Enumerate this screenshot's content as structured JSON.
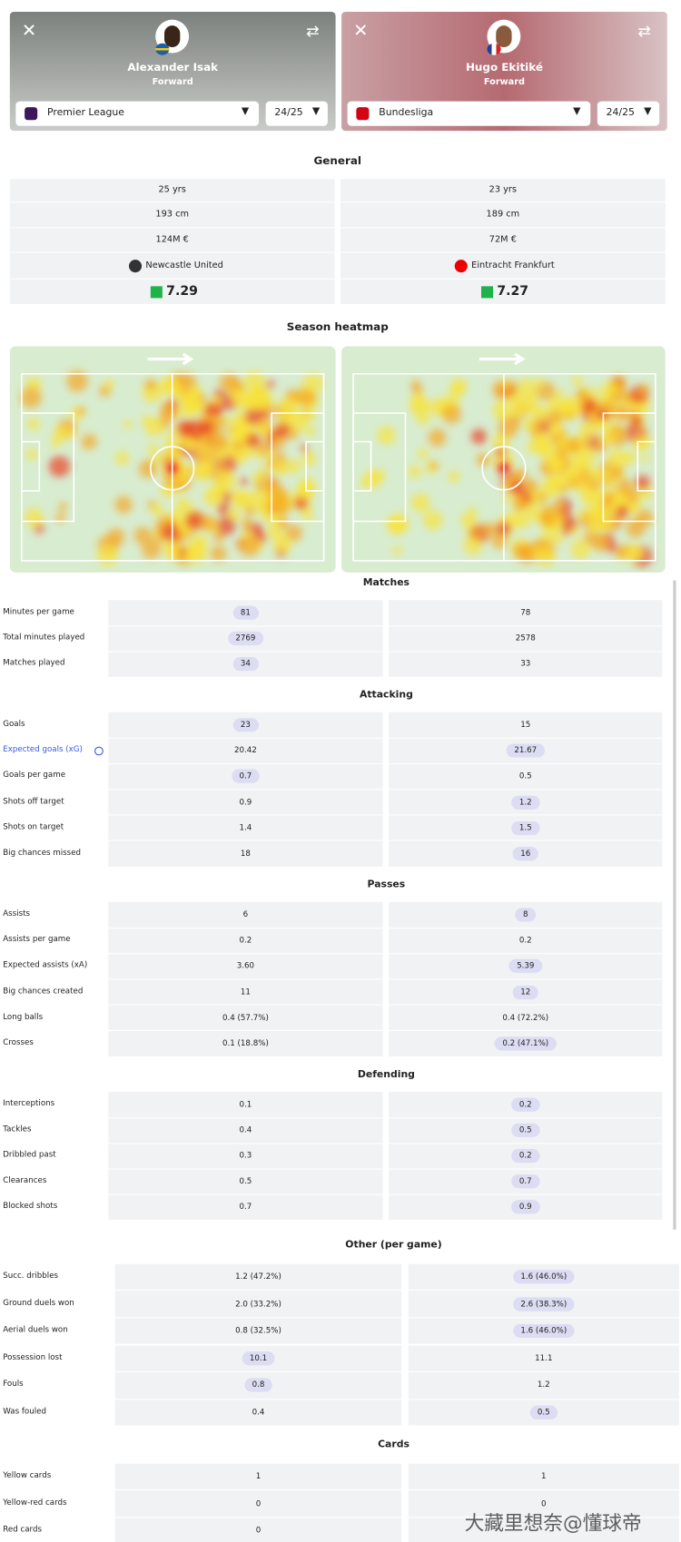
{
  "players": [
    {
      "name": "Alexander Isak",
      "position": "Forward",
      "league": "Premier League",
      "season": "24/25"
    },
    {
      "name": "Hugo Ekitiké",
      "position": "Forward",
      "league": "Bundesliga",
      "season": "24/25"
    }
  ],
  "general": {
    "title": "General",
    "rows": [
      [
        "25 yrs",
        "23 yrs"
      ],
      [
        "193 cm",
        "189 cm"
      ],
      [
        "124M €",
        "72M €"
      ],
      [
        "Newcastle United",
        "Eintracht Frankfurt"
      ],
      [
        "7.29",
        "7.27"
      ]
    ]
  },
  "heatmap_title": "Season heatmap",
  "sections": [
    {
      "title": "Matches",
      "rows": [
        {
          "label": "Minutes per game",
          "left": "81",
          "right": "78",
          "highlight": "left"
        },
        {
          "label": "Total minutes played",
          "left": "2769",
          "right": "2578",
          "highlight": "left"
        },
        {
          "label": "Matches played",
          "left": "34",
          "right": "33",
          "highlight": "left"
        }
      ]
    },
    {
      "title": "Attacking",
      "rows": [
        {
          "label": "Goals",
          "left": "23",
          "right": "15",
          "highlight": "left"
        },
        {
          "label": "Expected goals (xG)",
          "left": "20.42",
          "right": "21.67",
          "highlight": "right"
        },
        {
          "label": "Goals per game",
          "left": "0.7",
          "right": "0.5",
          "highlight": "left"
        },
        {
          "label": "Shots off target",
          "left": "0.9",
          "right": "1.2",
          "highlight": "right"
        },
        {
          "label": "Shots on target",
          "left": "1.4",
          "right": "1.5",
          "highlight": "right"
        },
        {
          "label": "Big chances missed",
          "left": "18",
          "right": "16",
          "highlight": "right"
        }
      ]
    },
    {
      "title": "Passes",
      "rows": [
        {
          "label": "Assists",
          "left": "6",
          "right": "8",
          "highlight": "right"
        },
        {
          "label": "Assists per game",
          "left": "0.2",
          "right": "0.2",
          "highlight": null
        },
        {
          "label": "Expected assists (xA)",
          "left": "3.60",
          "right": "5.39",
          "highlight": "right"
        },
        {
          "label": "Big chances created",
          "left": "11",
          "right": "12",
          "highlight": "right"
        },
        {
          "label": "Long balls",
          "left": "0.4 (57.7%)",
          "right": "0.4 (72.2%)",
          "highlight": null
        },
        {
          "label": "Crosses",
          "left": "0.1 (18.8%)",
          "right": "0.2 (47.1%)",
          "highlight": "right"
        }
      ]
    },
    {
      "title": "Defending",
      "rows": [
        {
          "label": "Interceptions",
          "left": "0.1",
          "right": "0.2",
          "highlight": "right"
        },
        {
          "label": "Tackles",
          "left": "0.4",
          "right": "0.5",
          "highlight": "right"
        },
        {
          "label": "Dribbled past",
          "left": "0.3",
          "right": "0.2",
          "highlight": "right"
        },
        {
          "label": "Clearances",
          "left": "0.5",
          "right": "0.7",
          "highlight": "right"
        },
        {
          "label": "Blocked shots",
          "left": "0.7",
          "right": "0.9",
          "highlight": "right"
        }
      ]
    },
    {
      "title": "Other (per game)",
      "rows": [
        {
          "label": "Succ. dribbles",
          "left": "1.2 (47.2%)",
          "right": "1.6 (46.0%)",
          "highlight": "right"
        },
        {
          "label": "Ground duels won",
          "left": "2.0 (33.2%)",
          "right": "2.6 (38.3%)",
          "highlight": "right"
        },
        {
          "label": "Aerial duels won",
          "left": "0.8 (32.5%)",
          "right": "1.6 (46.0%)",
          "highlight": "right"
        },
        {
          "label": "Possession lost",
          "left": "10.1",
          "right": "11.1",
          "highlight": "left"
        },
        {
          "label": "Fouls",
          "left": "0.8",
          "right": "1.2",
          "highlight": "left"
        },
        {
          "label": "Was fouled",
          "left": "0.4",
          "right": "0.5",
          "highlight": "right"
        }
      ]
    },
    {
      "title": "Cards",
      "rows": [
        {
          "label": "Yellow cards",
          "left": "1",
          "right": "1",
          "highlight": null
        },
        {
          "label": "Yellow-red cards",
          "left": "0",
          "right": "0",
          "highlight": null
        },
        {
          "label": "Red cards",
          "left": "0",
          "right": null,
          "highlight": null
        }
      ]
    }
  ],
  "watermark": "大藏里想奈@懂球帝"
}
